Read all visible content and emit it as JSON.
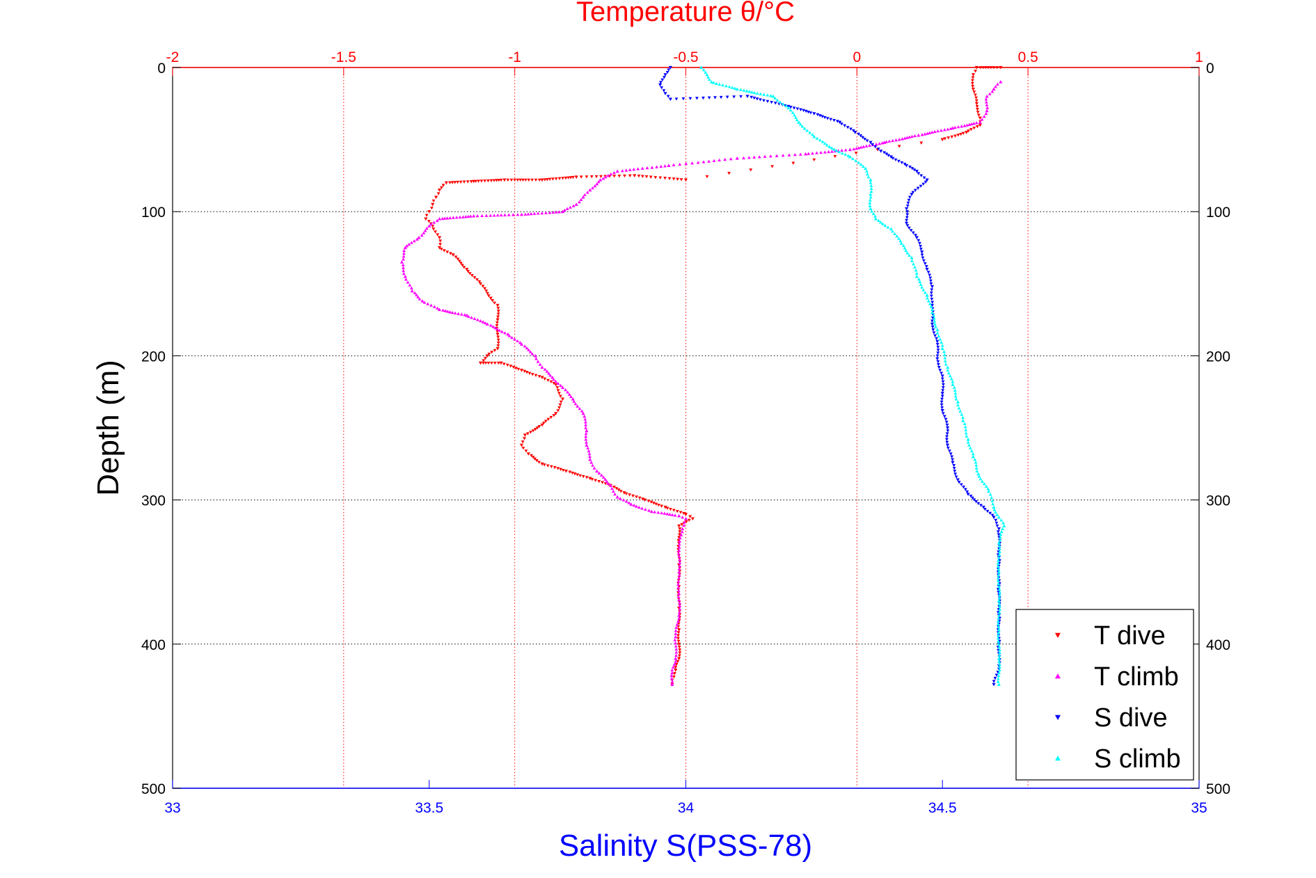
{
  "chart_data": {
    "type": "scatter",
    "top_axis": {
      "label": "Temperature θ/°C",
      "range": [
        -2,
        1
      ],
      "ticks": [
        "-2",
        "-1.5",
        "-1",
        "-0.5",
        "0",
        "0.5",
        "1"
      ],
      "color": "#ff0000"
    },
    "bottom_axis": {
      "label": "Salinity S(PSS-78)",
      "range": [
        33,
        35
      ],
      "ticks": [
        "33",
        "33.5",
        "34",
        "34.5",
        "35"
      ],
      "color": "#0000ff"
    },
    "y_axis": {
      "label": "Depth (m)",
      "range": [
        0,
        500
      ],
      "reversed": true,
      "ticks": [
        "0",
        "100",
        "200",
        "300",
        "400",
        "500"
      ]
    },
    "grid": true,
    "legend_position": "bottom-right",
    "series": [
      {
        "name": "T dive",
        "axis": "temperature",
        "marker": "triangle-down",
        "color": "#ff0000",
        "points": [
          [
            0.42,
            0
          ],
          [
            0.35,
            0
          ],
          [
            0.34,
            5
          ],
          [
            0.34,
            15
          ],
          [
            0.35,
            25
          ],
          [
            0.36,
            35
          ],
          [
            0.36,
            40
          ],
          [
            0.32,
            45
          ],
          [
            0.25,
            50
          ],
          [
            -0.5,
            78
          ],
          [
            -0.65,
            75
          ],
          [
            -0.82,
            76
          ],
          [
            -0.92,
            78
          ],
          [
            -1.03,
            78
          ],
          [
            -1.12,
            79
          ],
          [
            -1.2,
            80
          ],
          [
            -1.22,
            85
          ],
          [
            -1.23,
            90
          ],
          [
            -1.24,
            95
          ],
          [
            -1.25,
            100
          ],
          [
            -1.26,
            105
          ],
          [
            -1.24,
            110
          ],
          [
            -1.22,
            118
          ],
          [
            -1.22,
            125
          ],
          [
            -1.18,
            130
          ],
          [
            -1.14,
            140
          ],
          [
            -1.1,
            150
          ],
          [
            -1.07,
            160
          ],
          [
            -1.05,
            165
          ],
          [
            -1.05,
            175
          ],
          [
            -1.05,
            185
          ],
          [
            -1.05,
            195
          ],
          [
            -1.08,
            200
          ],
          [
            -1.1,
            205
          ],
          [
            -1.04,
            205
          ],
          [
            -0.98,
            210
          ],
          [
            -0.92,
            215
          ],
          [
            -0.88,
            220
          ],
          [
            -0.86,
            230
          ],
          [
            -0.88,
            240
          ],
          [
            -0.92,
            248
          ],
          [
            -0.97,
            255
          ],
          [
            -0.98,
            262
          ],
          [
            -0.96,
            268
          ],
          [
            -0.92,
            275
          ],
          [
            -0.85,
            280
          ],
          [
            -0.78,
            285
          ],
          [
            -0.72,
            290
          ],
          [
            -0.68,
            295
          ],
          [
            -0.62,
            300
          ],
          [
            -0.56,
            305
          ],
          [
            -0.5,
            310
          ],
          [
            -0.48,
            313
          ],
          [
            -0.52,
            318
          ],
          [
            -0.52,
            330
          ],
          [
            -0.52,
            345
          ],
          [
            -0.52,
            360
          ],
          [
            -0.52,
            375
          ],
          [
            -0.52,
            390
          ],
          [
            -0.52,
            400
          ],
          [
            -0.52,
            410
          ],
          [
            -0.53,
            418
          ],
          [
            -0.54,
            425
          ],
          [
            -0.54,
            428
          ]
        ]
      },
      {
        "name": "T climb",
        "axis": "temperature",
        "marker": "triangle-up",
        "color": "#ff00ff",
        "points": [
          [
            0.42,
            10
          ],
          [
            0.4,
            15
          ],
          [
            0.38,
            20
          ],
          [
            0.38,
            30
          ],
          [
            0.36,
            38
          ],
          [
            0.28,
            42
          ],
          [
            0.18,
            47
          ],
          [
            0.08,
            52
          ],
          [
            -0.02,
            57
          ],
          [
            -0.15,
            60
          ],
          [
            -0.35,
            63
          ],
          [
            -0.55,
            68
          ],
          [
            -0.7,
            72
          ],
          [
            -0.75,
            78
          ],
          [
            -0.78,
            85
          ],
          [
            -0.8,
            90
          ],
          [
            -0.82,
            95
          ],
          [
            -0.86,
            100
          ],
          [
            -0.98,
            102
          ],
          [
            -1.12,
            103
          ],
          [
            -1.22,
            105
          ],
          [
            -1.25,
            110
          ],
          [
            -1.28,
            118
          ],
          [
            -1.32,
            125
          ],
          [
            -1.33,
            135
          ],
          [
            -1.32,
            145
          ],
          [
            -1.3,
            155
          ],
          [
            -1.27,
            162
          ],
          [
            -1.22,
            168
          ],
          [
            -1.14,
            172
          ],
          [
            -1.08,
            178
          ],
          [
            -1.02,
            185
          ],
          [
            -0.98,
            192
          ],
          [
            -0.94,
            200
          ],
          [
            -0.92,
            208
          ],
          [
            -0.89,
            215
          ],
          [
            -0.86,
            222
          ],
          [
            -0.83,
            230
          ],
          [
            -0.8,
            240
          ],
          [
            -0.79,
            252
          ],
          [
            -0.79,
            262
          ],
          [
            -0.78,
            272
          ],
          [
            -0.76,
            280
          ],
          [
            -0.72,
            290
          ],
          [
            -0.7,
            298
          ],
          [
            -0.66,
            303
          ],
          [
            -0.6,
            308
          ],
          [
            -0.52,
            311
          ],
          [
            -0.5,
            313
          ],
          [
            -0.51,
            320
          ],
          [
            -0.52,
            335
          ],
          [
            -0.52,
            350
          ],
          [
            -0.52,
            365
          ],
          [
            -0.52,
            380
          ],
          [
            -0.53,
            395
          ],
          [
            -0.53,
            410
          ],
          [
            -0.54,
            420
          ],
          [
            -0.54,
            428
          ]
        ]
      },
      {
        "name": "S dive",
        "axis": "salinity",
        "marker": "triangle-down",
        "color": "#0000ff",
        "points": [
          [
            33.97,
            0
          ],
          [
            33.96,
            5
          ],
          [
            33.95,
            12
          ],
          [
            33.96,
            18
          ],
          [
            33.97,
            22
          ],
          [
            34.12,
            20
          ],
          [
            34.2,
            27
          ],
          [
            34.25,
            32
          ],
          [
            34.3,
            38
          ],
          [
            34.33,
            45
          ],
          [
            34.36,
            52
          ],
          [
            34.38,
            58
          ],
          [
            34.4,
            62
          ],
          [
            34.43,
            68
          ],
          [
            34.45,
            72
          ],
          [
            34.47,
            78
          ],
          [
            34.44,
            88
          ],
          [
            34.43,
            98
          ],
          [
            34.43,
            108
          ],
          [
            34.45,
            118
          ],
          [
            34.46,
            128
          ],
          [
            34.47,
            140
          ],
          [
            34.48,
            152
          ],
          [
            34.48,
            165
          ],
          [
            34.48,
            178
          ],
          [
            34.49,
            190
          ],
          [
            34.49,
            202
          ],
          [
            34.5,
            214
          ],
          [
            34.5,
            226
          ],
          [
            34.5,
            238
          ],
          [
            34.51,
            250
          ],
          [
            34.51,
            262
          ],
          [
            34.52,
            274
          ],
          [
            34.53,
            286
          ],
          [
            34.55,
            296
          ],
          [
            34.58,
            305
          ],
          [
            34.6,
            312
          ],
          [
            34.61,
            320
          ],
          [
            34.61,
            340
          ],
          [
            34.61,
            360
          ],
          [
            34.61,
            380
          ],
          [
            34.61,
            400
          ],
          [
            34.61,
            415
          ],
          [
            34.6,
            428
          ]
        ]
      },
      {
        "name": "S climb",
        "axis": "salinity",
        "marker": "triangle-up",
        "color": "#00ffff",
        "points": [
          [
            34.03,
            0
          ],
          [
            34.05,
            10
          ],
          [
            34.1,
            15
          ],
          [
            34.17,
            20
          ],
          [
            34.2,
            28
          ],
          [
            34.22,
            38
          ],
          [
            34.25,
            48
          ],
          [
            34.28,
            55
          ],
          [
            34.32,
            62
          ],
          [
            34.35,
            70
          ],
          [
            34.36,
            78
          ],
          [
            34.36,
            88
          ],
          [
            34.36,
            98
          ],
          [
            34.37,
            105
          ],
          [
            34.4,
            112
          ],
          [
            34.42,
            122
          ],
          [
            34.44,
            132
          ],
          [
            34.45,
            145
          ],
          [
            34.47,
            158
          ],
          [
            34.48,
            170
          ],
          [
            34.49,
            182
          ],
          [
            34.5,
            195
          ],
          [
            34.51,
            208
          ],
          [
            34.52,
            220
          ],
          [
            34.53,
            232
          ],
          [
            34.54,
            245
          ],
          [
            34.55,
            258
          ],
          [
            34.56,
            270
          ],
          [
            34.57,
            282
          ],
          [
            34.59,
            294
          ],
          [
            34.6,
            305
          ],
          [
            34.61,
            312
          ],
          [
            34.62,
            318
          ],
          [
            34.61,
            330
          ],
          [
            34.61,
            350
          ],
          [
            34.61,
            370
          ],
          [
            34.61,
            390
          ],
          [
            34.61,
            410
          ],
          [
            34.61,
            428
          ]
        ]
      }
    ]
  }
}
